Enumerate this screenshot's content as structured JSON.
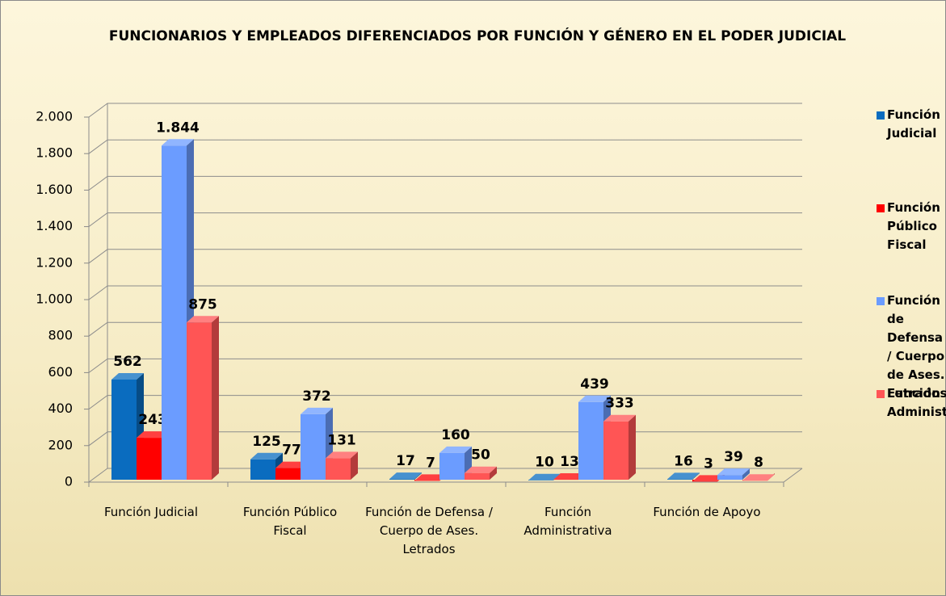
{
  "chart_data": {
    "type": "bar3d",
    "title": "FUNCIONARIOS Y EMPLEADOS DIFERENCIADOS POR FUNCIÓN Y GÉNERO EN EL PODER JUDICIAL",
    "categories": [
      "Función Judicial",
      "Función Público Fiscal",
      "Función de Defensa / Cuerpo de Ases. Letrados",
      "Función Administrativa",
      "Función de Apoyo"
    ],
    "series": [
      {
        "name": "Función Judicial",
        "color": "#0a6cbf",
        "values": [
          562,
          125,
          17,
          10,
          16
        ]
      },
      {
        "name": "Función Público Fiscal",
        "color": "#ff0000",
        "values": [
          243,
          77,
          7,
          13,
          3
        ]
      },
      {
        "name": "Función de Defensa / Cuerpo de Ases. Letrados",
        "color": "#6b9cff",
        "values": [
          1844,
          372,
          160,
          439,
          39
        ],
        "value_labels": [
          "1.844",
          "372",
          "160",
          "439",
          "39"
        ]
      },
      {
        "name": "Función Administrativa",
        "color": "#ff5555",
        "values": [
          875,
          131,
          50,
          333,
          8
        ]
      }
    ],
    "ylim": [
      0,
      2000
    ],
    "yticks": [
      0,
      200,
      400,
      600,
      800,
      {
        "value": 1000,
        "label": "1.000"
      },
      {
        "value": 1200,
        "label": "1.200"
      },
      {
        "value": 1400,
        "label": "1.400"
      },
      {
        "value": 1600,
        "label": "1.600"
      },
      {
        "value": 1800,
        "label": "1.800"
      },
      {
        "value": 2000,
        "label": "2.000"
      }
    ],
    "grid": true,
    "legend": "right"
  }
}
